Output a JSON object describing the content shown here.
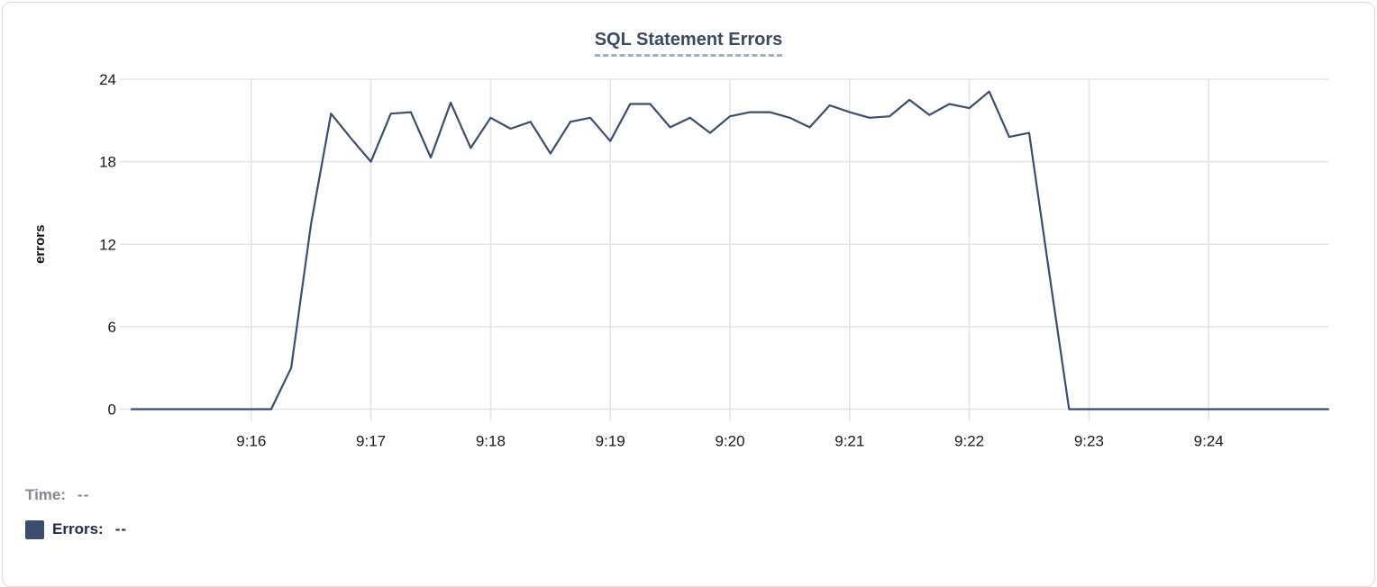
{
  "chart": {
    "title": "SQL Statement Errors"
  },
  "tooltip": {
    "time_label": "Time:",
    "time_value": "--",
    "errors_label": "Errors:",
    "errors_value": "--"
  },
  "chart_data": {
    "type": "line",
    "title": "SQL Statement Errors",
    "xlabel": "",
    "ylabel": "errors",
    "ylim": [
      0,
      24
    ],
    "y_ticks": [
      0,
      6,
      12,
      18,
      24
    ],
    "x_tick_labels": [
      "9:16",
      "9:17",
      "9:18",
      "9:19",
      "9:20",
      "9:21",
      "9:22",
      "9:23",
      "9:24"
    ],
    "x_start": "9:15:00",
    "x_end": "9:25:00",
    "x_step_seconds": 10,
    "grid": true,
    "legend_position": "bottom-left",
    "line_color": "#3d4d6e",
    "grid_color": "#e4e4e4",
    "tick_color": "#1a1a1a",
    "series": [
      {
        "name": "Errors",
        "x": [
          "9:15:00",
          "9:15:10",
          "9:15:20",
          "9:15:30",
          "9:15:40",
          "9:15:50",
          "9:16:00",
          "9:16:10",
          "9:16:20",
          "9:16:30",
          "9:16:40",
          "9:16:50",
          "9:17:00",
          "9:17:10",
          "9:17:20",
          "9:17:30",
          "9:17:40",
          "9:17:50",
          "9:18:00",
          "9:18:10",
          "9:18:20",
          "9:18:30",
          "9:18:40",
          "9:18:50",
          "9:19:00",
          "9:19:10",
          "9:19:20",
          "9:19:30",
          "9:19:40",
          "9:19:50",
          "9:20:00",
          "9:20:10",
          "9:20:20",
          "9:20:30",
          "9:20:40",
          "9:20:50",
          "9:21:00",
          "9:21:10",
          "9:21:20",
          "9:21:30",
          "9:21:40",
          "9:21:50",
          "9:22:00",
          "9:22:10",
          "9:22:20",
          "9:22:30",
          "9:22:40",
          "9:22:50",
          "9:23:00",
          "9:23:10",
          "9:23:20",
          "9:23:30",
          "9:23:40",
          "9:23:50",
          "9:24:00",
          "9:24:10",
          "9:24:20",
          "9:24:30",
          "9:24:40",
          "9:24:50",
          "9:25:00"
        ],
        "values": [
          0,
          0,
          0,
          0,
          0,
          0,
          0,
          0,
          3,
          13.5,
          21.5,
          19.7,
          18,
          21.5,
          21.6,
          18.3,
          22.3,
          19,
          21.2,
          20.4,
          20.9,
          18.6,
          20.9,
          21.2,
          19.5,
          22.2,
          22.2,
          20.5,
          21.2,
          20.1,
          21.3,
          21.6,
          21.6,
          21.2,
          20.5,
          22.1,
          21.6,
          21.2,
          21.3,
          22.5,
          21.4,
          22.2,
          21.9,
          23.1,
          19.8,
          20.1,
          10,
          0,
          0,
          0,
          0,
          0,
          0,
          0,
          0,
          0,
          0,
          0,
          0,
          0,
          0
        ]
      }
    ]
  }
}
